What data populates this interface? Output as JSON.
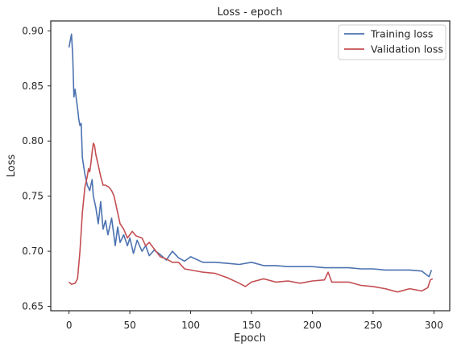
{
  "chart_data": {
    "type": "line",
    "title": "Loss - epoch",
    "xlabel": "Epoch",
    "ylabel": "Loss",
    "xlim": [
      -15,
      313
    ],
    "ylim": [
      0.646,
      0.909
    ],
    "xticks": [
      0,
      50,
      100,
      150,
      200,
      250,
      300
    ],
    "yticks": [
      0.65,
      0.7,
      0.75,
      0.8,
      0.85,
      0.9
    ],
    "ytick_labels": [
      "0.65",
      "0.70",
      "0.75",
      "0.80",
      "0.85",
      "0.90"
    ],
    "grid": false,
    "legend_position": "top-right",
    "series": [
      {
        "name": "Training loss",
        "color": "#4c72b0",
        "points": [
          [
            0,
            0.885
          ],
          [
            2,
            0.897
          ],
          [
            3,
            0.878
          ],
          [
            4,
            0.84
          ],
          [
            5,
            0.847
          ],
          [
            6,
            0.838
          ],
          [
            7,
            0.83
          ],
          [
            8,
            0.82
          ],
          [
            9,
            0.814
          ],
          [
            10,
            0.816
          ],
          [
            11,
            0.785
          ],
          [
            13,
            0.77
          ],
          [
            15,
            0.76
          ],
          [
            17,
            0.755
          ],
          [
            19,
            0.765
          ],
          [
            20,
            0.75
          ],
          [
            22,
            0.74
          ],
          [
            24,
            0.725
          ],
          [
            26,
            0.745
          ],
          [
            28,
            0.72
          ],
          [
            30,
            0.728
          ],
          [
            32,
            0.715
          ],
          [
            35,
            0.73
          ],
          [
            38,
            0.705
          ],
          [
            40,
            0.722
          ],
          [
            42,
            0.708
          ],
          [
            45,
            0.715
          ],
          [
            48,
            0.705
          ],
          [
            50,
            0.712
          ],
          [
            53,
            0.698
          ],
          [
            56,
            0.71
          ],
          [
            60,
            0.7
          ],
          [
            63,
            0.705
          ],
          [
            66,
            0.696
          ],
          [
            70,
            0.701
          ],
          [
            75,
            0.697
          ],
          [
            80,
            0.692
          ],
          [
            85,
            0.7
          ],
          [
            90,
            0.694
          ],
          [
            95,
            0.691
          ],
          [
            100,
            0.695
          ],
          [
            110,
            0.69
          ],
          [
            120,
            0.69
          ],
          [
            130,
            0.689
          ],
          [
            140,
            0.688
          ],
          [
            150,
            0.69
          ],
          [
            160,
            0.687
          ],
          [
            170,
            0.687
          ],
          [
            180,
            0.686
          ],
          [
            190,
            0.686
          ],
          [
            200,
            0.686
          ],
          [
            210,
            0.685
          ],
          [
            220,
            0.685
          ],
          [
            230,
            0.685
          ],
          [
            240,
            0.684
          ],
          [
            250,
            0.684
          ],
          [
            260,
            0.683
          ],
          [
            270,
            0.683
          ],
          [
            280,
            0.683
          ],
          [
            290,
            0.682
          ],
          [
            296,
            0.677
          ],
          [
            298,
            0.683
          ]
        ]
      },
      {
        "name": "Validation loss",
        "color": "#c44e52",
        "points": [
          [
            0,
            0.672
          ],
          [
            2,
            0.67
          ],
          [
            5,
            0.671
          ],
          [
            7,
            0.675
          ],
          [
            9,
            0.7
          ],
          [
            11,
            0.735
          ],
          [
            13,
            0.758
          ],
          [
            15,
            0.768
          ],
          [
            16,
            0.775
          ],
          [
            17,
            0.772
          ],
          [
            18,
            0.78
          ],
          [
            19,
            0.79
          ],
          [
            20,
            0.798
          ],
          [
            21,
            0.796
          ],
          [
            22,
            0.788
          ],
          [
            24,
            0.778
          ],
          [
            26,
            0.768
          ],
          [
            28,
            0.76
          ],
          [
            30,
            0.76
          ],
          [
            33,
            0.758
          ],
          [
            35,
            0.755
          ],
          [
            37,
            0.75
          ],
          [
            40,
            0.735
          ],
          [
            42,
            0.725
          ],
          [
            45,
            0.72
          ],
          [
            48,
            0.712
          ],
          [
            52,
            0.718
          ],
          [
            55,
            0.714
          ],
          [
            60,
            0.712
          ],
          [
            63,
            0.705
          ],
          [
            66,
            0.708
          ],
          [
            70,
            0.702
          ],
          [
            75,
            0.695
          ],
          [
            80,
            0.693
          ],
          [
            85,
            0.69
          ],
          [
            90,
            0.69
          ],
          [
            95,
            0.684
          ],
          [
            100,
            0.683
          ],
          [
            110,
            0.681
          ],
          [
            120,
            0.68
          ],
          [
            130,
            0.676
          ],
          [
            140,
            0.671
          ],
          [
            145,
            0.668
          ],
          [
            150,
            0.672
          ],
          [
            160,
            0.675
          ],
          [
            170,
            0.672
          ],
          [
            180,
            0.673
          ],
          [
            190,
            0.671
          ],
          [
            200,
            0.673
          ],
          [
            210,
            0.674
          ],
          [
            213,
            0.681
          ],
          [
            216,
            0.672
          ],
          [
            220,
            0.672
          ],
          [
            230,
            0.672
          ],
          [
            240,
            0.669
          ],
          [
            250,
            0.668
          ],
          [
            260,
            0.666
          ],
          [
            270,
            0.663
          ],
          [
            280,
            0.666
          ],
          [
            290,
            0.664
          ],
          [
            295,
            0.667
          ],
          [
            297,
            0.674
          ],
          [
            299,
            0.675
          ]
        ]
      }
    ]
  }
}
